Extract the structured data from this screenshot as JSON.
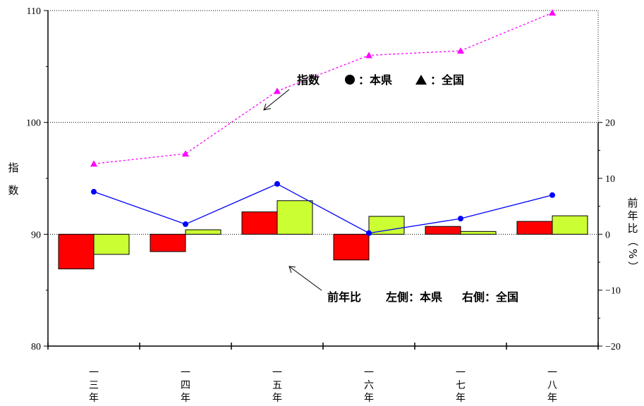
{
  "chart_data": {
    "type": "line+bar",
    "categories": [
      "一三年",
      "一四年",
      "一五年",
      "一六年",
      "一七年",
      "一八年"
    ],
    "left_axis": {
      "label": "指数",
      "ylim": [
        80,
        110
      ],
      "ticks": [
        "80",
        "90",
        "100",
        "110"
      ]
    },
    "right_axis": {
      "label": "前年比（%）",
      "ylim": [
        -20,
        20
      ],
      "ticks": [
        "−20",
        "−10",
        "0",
        "10",
        "20"
      ]
    },
    "line_series": [
      {
        "name": "本県",
        "axis": "left",
        "color": "#0000ff",
        "marker": "circle",
        "values": [
          93.8,
          90.9,
          94.5,
          90.1,
          91.4,
          93.5
        ]
      },
      {
        "name": "全国",
        "axis": "left",
        "color": "#ff00ff",
        "marker": "triangle",
        "dash": true,
        "values": [
          96.3,
          97.2,
          102.8,
          106.0,
          106.4,
          109.8
        ]
      }
    ],
    "bar_series": [
      {
        "name": "本県",
        "axis": "right",
        "color": "#ff0000",
        "values": [
          -6.2,
          -3.1,
          4.0,
          -4.6,
          1.4,
          2.3
        ]
      },
      {
        "name": "全国",
        "axis": "right",
        "color": "#ccff33",
        "values": [
          -3.6,
          0.8,
          6.0,
          3.2,
          0.5,
          3.3
        ]
      }
    ],
    "legend_line": {
      "title": "指数",
      "s1": "：本県",
      "s2": "：全国"
    },
    "legend_bar": {
      "title": "前年比",
      "s1": "左側：本県",
      "s2": "右側：全国"
    }
  }
}
